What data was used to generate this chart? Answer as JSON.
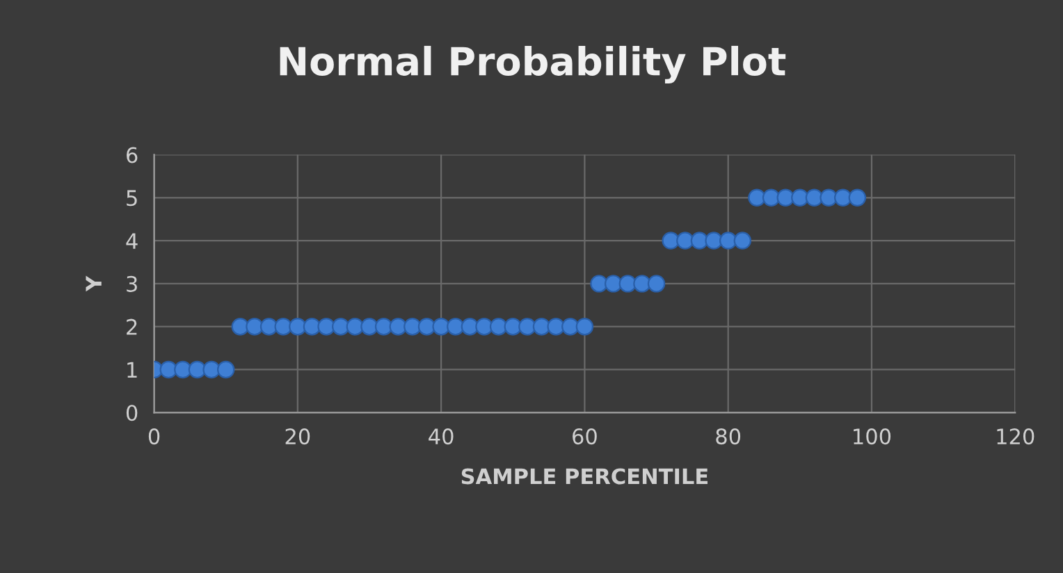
{
  "chart_data": {
    "type": "scatter",
    "title": "Normal Probability Plot",
    "xlabel": "SAMPLE PERCENTILE",
    "ylabel": "Y",
    "x": [
      0,
      2,
      4,
      6,
      8,
      10,
      12,
      14,
      16,
      18,
      20,
      22,
      24,
      26,
      28,
      30,
      32,
      34,
      36,
      38,
      40,
      42,
      44,
      46,
      48,
      50,
      52,
      54,
      56,
      58,
      60,
      62,
      64,
      66,
      68,
      70,
      72,
      74,
      76,
      78,
      80,
      82,
      84,
      86,
      88,
      90,
      92,
      94,
      96,
      98
    ],
    "values": [
      1,
      1,
      1,
      1,
      1,
      1,
      2,
      2,
      2,
      2,
      2,
      2,
      2,
      2,
      2,
      2,
      2,
      2,
      2,
      2,
      2,
      2,
      2,
      2,
      2,
      2,
      2,
      2,
      2,
      2,
      2,
      3,
      3,
      3,
      3,
      3,
      4,
      4,
      4,
      4,
      4,
      4,
      5,
      5,
      5,
      5,
      5,
      5,
      5,
      5
    ],
    "color": "#3f7fd4",
    "marker": "circle",
    "xlim": [
      0,
      120
    ],
    "xticks": [
      0,
      20,
      40,
      60,
      80,
      100,
      120
    ],
    "ylim": [
      0,
      6
    ],
    "yticks": [
      0,
      1,
      2,
      3,
      4,
      5,
      6
    ],
    "grid": true
  }
}
